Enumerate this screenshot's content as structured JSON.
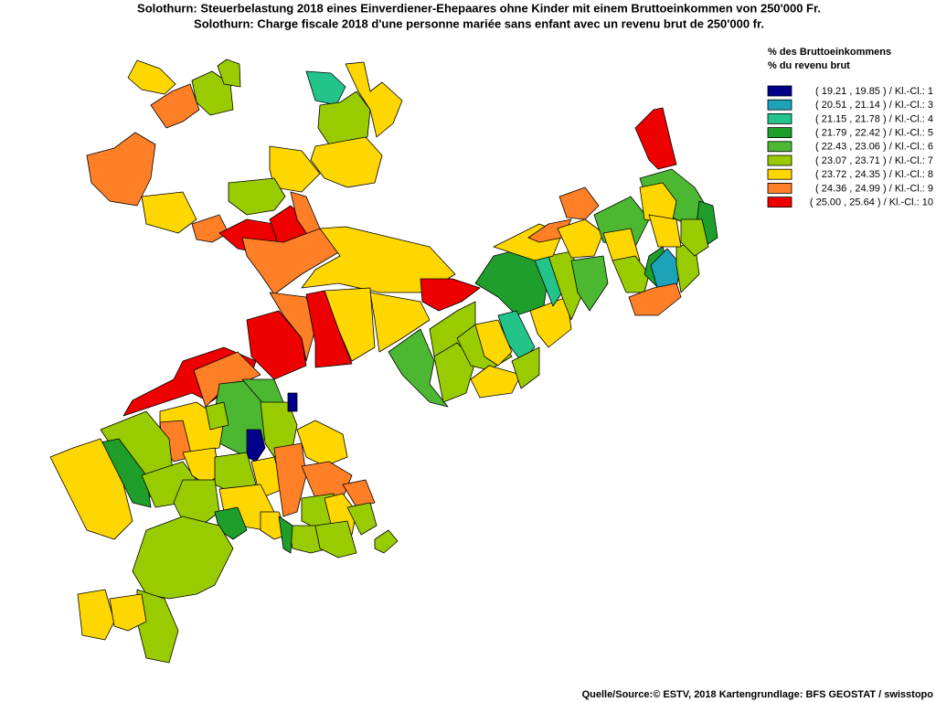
{
  "title": [
    "Solothurn: Steuerbelastung 2018 eines Einverdiener-Ehepaares ohne Kinder mit einem Bruttoeinkommen von 250'000 Fr.",
    "Solothurn: Charge fiscale 2018 d'une personne mariée sans enfant avec un revenu brut de 250'000 fr."
  ],
  "legend": {
    "title": [
      "% des Bruttoeinkommens",
      "% du revenu brut"
    ],
    "items": [
      {
        "label": "( 19.21 , 19.85 ) / Kl.-Cl.: 1",
        "color": "#00008b"
      },
      {
        "label": "( 20.51 , 21.14 ) / Kl.-Cl.: 3",
        "color": "#1ca3b8"
      },
      {
        "label": "( 21.15 , 21.78 ) / Kl.-Cl.: 4",
        "color": "#22c48a"
      },
      {
        "label": "( 21.79 , 22.42 ) / Kl.-Cl.: 5",
        "color": "#1f9e2c"
      },
      {
        "label": "( 22.43 , 23.06 ) / Kl.-Cl.: 6",
        "color": "#4cb832"
      },
      {
        "label": "( 23.07 , 23.71 ) / Kl.-Cl.: 7",
        "color": "#99cc00"
      },
      {
        "label": "( 23.72 , 24.35 ) / Kl.-Cl.: 8",
        "color": "#ffd700"
      },
      {
        "label": "( 24.36 , 24.99 ) / Kl.-Cl.: 9",
        "color": "#ff7f27"
      },
      {
        "label": "( 25.00 , 25.64 ) / Kl.-Cl.: 10",
        "color": "#ee0000"
      }
    ]
  },
  "source": "Quelle/Source:© ESTV, 2018 Kartengrundlage: BFS GEOSTAT / swisstopo"
}
